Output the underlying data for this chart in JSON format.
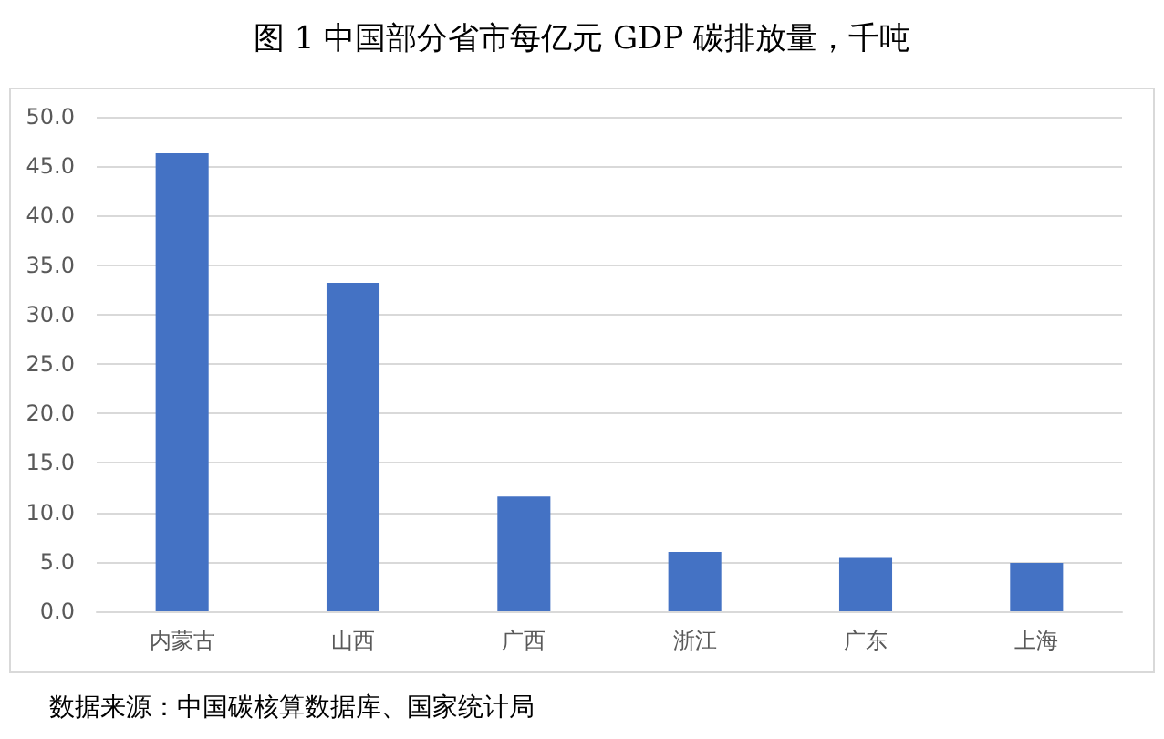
{
  "chart_data": {
    "type": "bar",
    "title": "图 1 中国部分省市每亿元 GDP 碳排放量，千吨",
    "categories": [
      "内蒙古",
      "山西",
      "广西",
      "浙江",
      "广东",
      "上海"
    ],
    "values": [
      46.3,
      33.2,
      11.6,
      6.0,
      5.4,
      4.9
    ],
    "color": "#4472c4",
    "ylim": [
      0,
      50
    ],
    "yticks": [
      {
        "value": 0,
        "label": "0.0"
      },
      {
        "value": 5,
        "label": "5.0"
      },
      {
        "value": 10,
        "label": "10.0"
      },
      {
        "value": 15,
        "label": "15.0"
      },
      {
        "value": 20,
        "label": "20.0"
      },
      {
        "value": 25,
        "label": "25.0"
      },
      {
        "value": 30,
        "label": "30.0"
      },
      {
        "value": 35,
        "label": "35.0"
      },
      {
        "value": 40,
        "label": "40.0"
      },
      {
        "value": 45,
        "label": "45.0"
      },
      {
        "value": 50,
        "label": "50.0"
      }
    ],
    "grid": "y",
    "annotations": [
      "数据来源：中国碳核算数据库、国家统计局"
    ]
  }
}
